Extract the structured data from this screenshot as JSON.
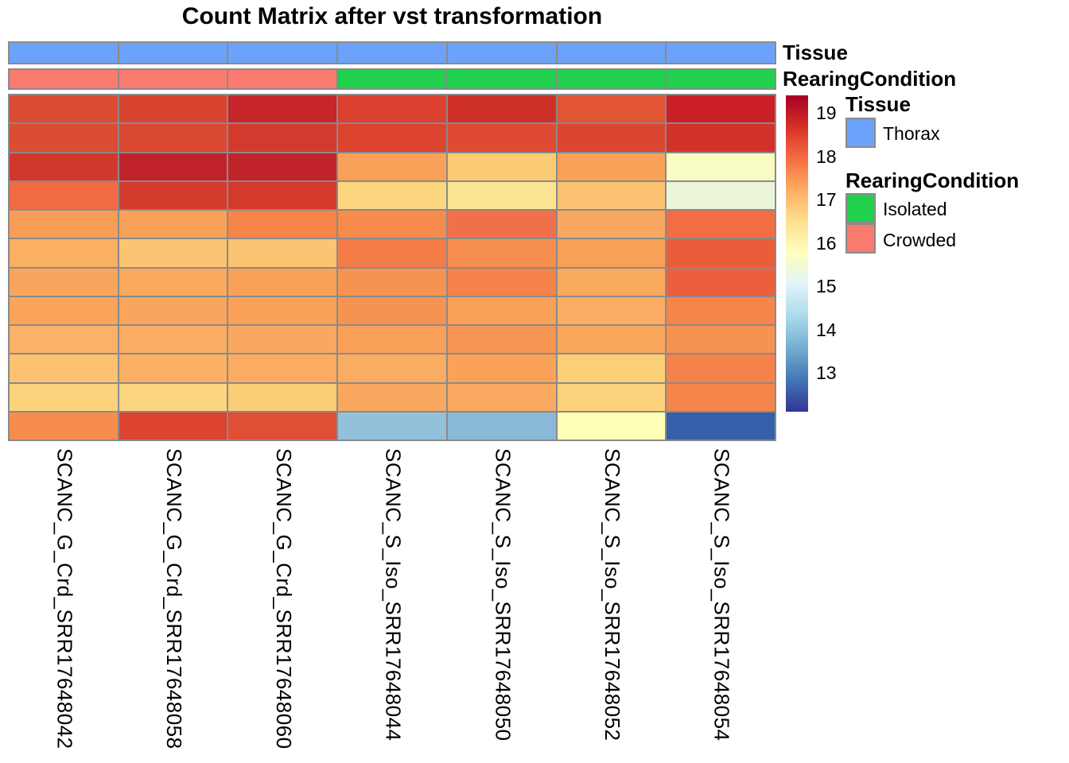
{
  "title": "Count Matrix after vst transformation",
  "annotation_labels": {
    "tissue": "Tissue",
    "rearing": "RearingCondition"
  },
  "annotation_tracks": [
    {
      "name": "Tissue",
      "values": [
        "Thorax",
        "Thorax",
        "Thorax",
        "Thorax",
        "Thorax",
        "Thorax",
        "Thorax"
      ],
      "cell_colors": [
        "#6CA2FA",
        "#6CA2FA",
        "#6CA2FA",
        "#6CA2FA",
        "#6CA2FA",
        "#6CA2FA",
        "#6CA2FA"
      ]
    },
    {
      "name": "RearingCondition",
      "values": [
        "Crowded",
        "Crowded",
        "Crowded",
        "Isolated",
        "Isolated",
        "Isolated",
        "Isolated"
      ],
      "cell_colors": [
        "#F97A6F",
        "#F97A6F",
        "#F97A6F",
        "#21D04C",
        "#21D04C",
        "#21D04C",
        "#21D04C"
      ]
    }
  ],
  "legend": {
    "tissue": {
      "title": "Tissue",
      "items": [
        {
          "label": "Thorax",
          "color": "#6CA2FA"
        }
      ]
    },
    "rearing_condition": {
      "title": "RearingCondition",
      "items": [
        {
          "label": "Isolated",
          "color": "#21D04C"
        },
        {
          "label": "Crowded",
          "color": "#F97A6F"
        }
      ]
    }
  },
  "chart_data": {
    "type": "heatmap",
    "title": "Count Matrix after vst transformation",
    "columns": [
      "SCANC_G_Crd_SRR17648042",
      "SCANC_G_Crd_SRR17648058",
      "SCANC_G_Crd_SRR17648060",
      "SCANC_S_Iso_SRR17648044",
      "SCANC_S_Iso_SRR17648050",
      "SCANC_S_Iso_SRR17648052",
      "SCANC_S_Iso_SRR17648054"
    ],
    "row_count": 12,
    "row_labels_shown": false,
    "values": [
      [
        18.5,
        18.55,
        18.85,
        18.55,
        18.65,
        18.4,
        18.8
      ],
      [
        18.45,
        18.5,
        18.6,
        18.55,
        18.55,
        18.5,
        18.65
      ],
      [
        18.6,
        18.9,
        18.9,
        17.1,
        16.5,
        17.1,
        15.5
      ],
      [
        17.8,
        18.6,
        18.6,
        16.35,
        16.15,
        16.6,
        15.2
      ],
      [
        17.1,
        17.05,
        17.35,
        17.3,
        17.65,
        17.0,
        17.6
      ],
      [
        16.9,
        16.55,
        16.55,
        17.5,
        17.25,
        17.1,
        17.75
      ],
      [
        16.95,
        16.9,
        17.05,
        17.2,
        17.4,
        16.8,
        17.7
      ],
      [
        16.95,
        16.95,
        17.05,
        17.2,
        17.1,
        16.8,
        17.35
      ],
      [
        16.8,
        16.85,
        16.9,
        17.0,
        17.2,
        16.9,
        17.1
      ],
      [
        16.5,
        16.75,
        16.8,
        16.8,
        17.0,
        16.4,
        17.4
      ],
      [
        16.3,
        16.3,
        16.45,
        16.85,
        16.85,
        16.3,
        17.3
      ],
      [
        17.15,
        18.5,
        18.35,
        14.3,
        14.2,
        15.7,
        12.9
      ]
    ],
    "cell_colors": [
      [
        "#DC4B33",
        "#D84330",
        "#C5252B",
        "#DC4030",
        "#CE3128",
        "#E15434",
        "#C92027"
      ],
      [
        "#DB4C33",
        "#DA4832",
        "#D23A2E",
        "#DC4430",
        "#DF4A35",
        "#DC4531",
        "#D23229"
      ],
      [
        "#D1382C",
        "#C1232B",
        "#C2242B",
        "#F9A158",
        "#FBCB74",
        "#F9A159",
        "#F8FBC2"
      ],
      [
        "#F06B43",
        "#D33B2D",
        "#D33A2C",
        "#FBD67F",
        "#FBE492",
        "#FBC372",
        "#EBF6D8"
      ],
      [
        "#F99D56",
        "#F9A159",
        "#F68549",
        "#F68B4C",
        "#F27049",
        "#F9A861",
        "#F26C44"
      ],
      [
        "#FBAF63",
        "#FBC473",
        "#FBC473",
        "#F37C47",
        "#F68F50",
        "#F9A058",
        "#EB5C3A"
      ],
      [
        "#FAA55D",
        "#FAA95F",
        "#F9A159",
        "#F79350",
        "#F5824B",
        "#FAAB60",
        "#ED5F3C"
      ],
      [
        "#FAA45C",
        "#FAA55D",
        "#F9A159",
        "#F79350",
        "#F9A158",
        "#FAAD62",
        "#F58549"
      ],
      [
        "#FBB167",
        "#FAAC62",
        "#FAA85F",
        "#F9A058",
        "#F79552",
        "#FAA75E",
        "#F79350"
      ],
      [
        "#FCC271",
        "#FBB065",
        "#FBAC62",
        "#FAAC62",
        "#F9A258",
        "#FBCE78",
        "#F5814B"
      ],
      [
        "#FCD37D",
        "#FCD67F",
        "#FBCD76",
        "#F9A860",
        "#FAAA60",
        "#FCD37C",
        "#F58449"
      ],
      [
        "#F68D4D",
        "#DC4330",
        "#E04E33",
        "#93C1DC",
        "#8AB9D8",
        "#FDFFB5",
        "#345FA9"
      ]
    ],
    "colorbar": {
      "ticks": [
        19,
        18,
        17,
        16,
        15,
        14,
        13
      ],
      "range": [
        12.1,
        19.4
      ],
      "gradient": [
        "#A50026",
        "#D73027",
        "#F46D43",
        "#FDAE61",
        "#FEE090",
        "#FFFFBF",
        "#E0F3F8",
        "#ABD9E9",
        "#74ADD1",
        "#4575B4",
        "#313695"
      ]
    },
    "grid_line_color": "#8A8A8A",
    "legend_position": "right"
  }
}
